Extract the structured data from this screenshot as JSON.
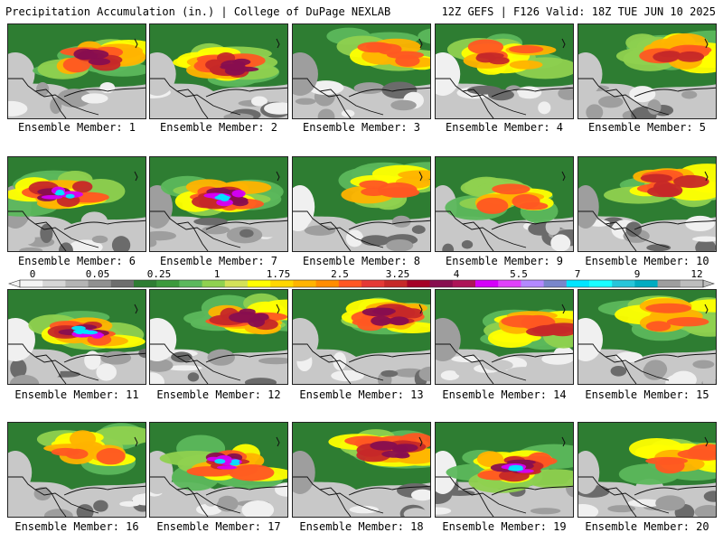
{
  "header": {
    "left": "Precipitation Accumulation (in.) | College of DuPage NEXLAB",
    "right": "12Z GEFS | F126 Valid: 18Z TUE JUN 10 2025"
  },
  "member_label_prefix": "Ensemble Member: ",
  "members": [
    {
      "number": 1,
      "max_level": 8,
      "focus": "northeast-central"
    },
    {
      "number": 2,
      "max_level": 8,
      "focus": "central"
    },
    {
      "number": 3,
      "max_level": 6,
      "focus": "northeast"
    },
    {
      "number": 4,
      "max_level": 7,
      "focus": "broad north"
    },
    {
      "number": 5,
      "max_level": 7,
      "focus": "northeast"
    },
    {
      "number": 6,
      "max_level": 10,
      "focus": "west-central"
    },
    {
      "number": 7,
      "max_level": 10,
      "focus": "central"
    },
    {
      "number": 8,
      "max_level": 6,
      "focus": "northeast"
    },
    {
      "number": 9,
      "max_level": 6,
      "focus": "central"
    },
    {
      "number": 10,
      "max_level": 7,
      "focus": "northeast"
    },
    {
      "number": 11,
      "max_level": 10,
      "focus": "central"
    },
    {
      "number": 12,
      "max_level": 8,
      "focus": "northeast"
    },
    {
      "number": 13,
      "max_level": 8,
      "focus": "northeast"
    },
    {
      "number": 14,
      "max_level": 7,
      "focus": "east"
    },
    {
      "number": 15,
      "max_level": 6,
      "focus": "northeast"
    },
    {
      "number": 16,
      "max_level": 6,
      "focus": "north"
    },
    {
      "number": 17,
      "max_level": 10,
      "focus": "central"
    },
    {
      "number": 18,
      "max_level": 8,
      "focus": "northeast"
    },
    {
      "number": 19,
      "max_level": 10,
      "focus": "central-southeast"
    },
    {
      "number": 20,
      "max_level": 6,
      "focus": "east"
    }
  ],
  "colorbar": {
    "unit": "in.",
    "tick_labels": [
      "0",
      "0.05",
      "0.25",
      "1",
      "1.75",
      "2.5",
      "3.25",
      "4",
      "5.5",
      "7",
      "9",
      "12"
    ],
    "colors": [
      "#f4f4f4",
      "#d6d6d6",
      "#b4b4b4",
      "#909090",
      "#6e6e6e",
      "#2e7d32",
      "#3c9a3c",
      "#5cb85c",
      "#8fd14f",
      "#d4e157",
      "#ffff00",
      "#ffd600",
      "#ffb300",
      "#ff8c00",
      "#ff5722",
      "#e53935",
      "#c62828",
      "#a50026",
      "#880e4f",
      "#ad1457",
      "#d500f9",
      "#e040fb",
      "#b388ff",
      "#7986cb",
      "#00e5ff",
      "#18ffff",
      "#26c6da",
      "#00acc1",
      "#9e9e9e",
      "#bdbdbd"
    ]
  }
}
